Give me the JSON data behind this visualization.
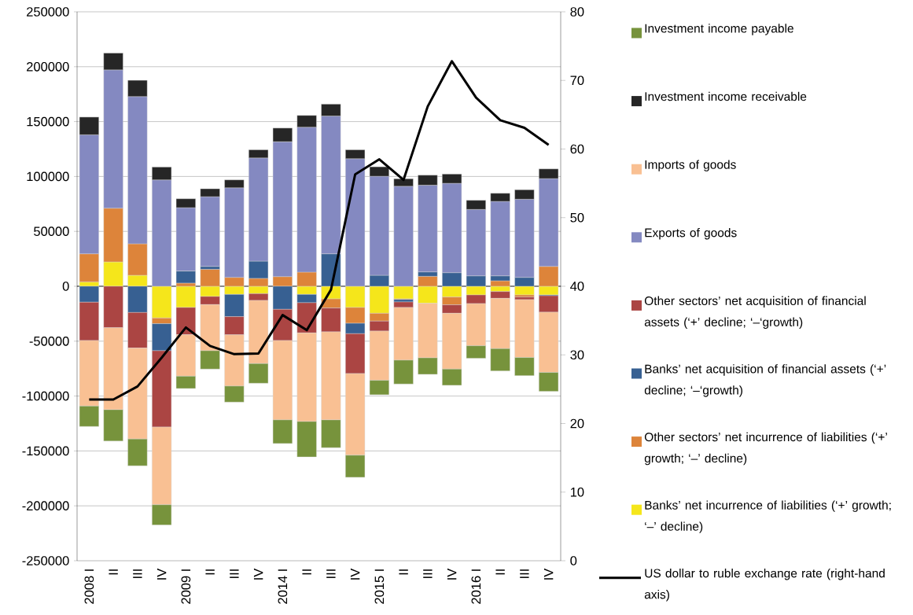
{
  "chart_data": {
    "type": "bar",
    "stacked": true,
    "grid": "y",
    "legend": "right",
    "categories": [
      "2008 I",
      "II",
      "III",
      "IV",
      "2009 I",
      "II",
      "III",
      "IV",
      "2014 I",
      "II",
      "III",
      "IV",
      "2015 I",
      "II",
      "III",
      "IV",
      "2016 I",
      "II",
      "III",
      "IV"
    ],
    "ylim": [
      -250000,
      250000
    ],
    "yticks": [
      -250000,
      -200000,
      -150000,
      -100000,
      -50000,
      0,
      50000,
      100000,
      150000,
      200000,
      250000
    ],
    "y2lim": [
      0,
      80
    ],
    "y2ticks": [
      0,
      10,
      20,
      30,
      40,
      50,
      60,
      70,
      80
    ],
    "series": [
      {
        "name": "Banks’ net incurrence of liabilities (‘+’ growth; ‘–’ decline)",
        "color": "#f5e61b",
        "values": [
          4000,
          22200,
          10000,
          -28900,
          -19300,
          -9300,
          -7400,
          -6700,
          null,
          -7400,
          -11500,
          -19300,
          -24600,
          -11500,
          -15500,
          -9800,
          -7900,
          -4800,
          -7900,
          -7900
        ]
      },
      {
        "name": "Other sectors’ net incurrence of liabilities (‘+’ growth; ‘–’ decline)",
        "color": "#dd843a",
        "values": [
          25600,
          48900,
          28700,
          -5200,
          2900,
          15500,
          8100,
          7200,
          8800,
          12900,
          -8300,
          -14400,
          -7100,
          -600,
          9100,
          -7100,
          null,
          5000,
          -1900,
          18100
        ]
      },
      {
        "name": "Banks’ net acquisition of financial assets (‘+’ decline; ‘–‘growth)",
        "color": "#376092",
        "values": [
          -14500,
          null,
          -23900,
          -24600,
          11000,
          2600,
          -20300,
          15700,
          -21000,
          -7600,
          29600,
          -9500,
          10000,
          -2200,
          4000,
          12400,
          9500,
          4500,
          8100,
          -700
        ]
      },
      {
        "name": "Other sectors’ net acquisition of financial assets (‘+’ decline; ‘–‘growth)",
        "color": "#ab4543",
        "values": [
          -34900,
          -37700,
          -32400,
          -69500,
          -24800,
          -7400,
          -16500,
          -6200,
          -28400,
          -27500,
          -21700,
          -36300,
          -9100,
          -5000,
          null,
          -7700,
          -7900,
          -6200,
          -2400,
          -15000
        ]
      },
      {
        "name": "Exports of goods",
        "color": "#8489c1",
        "values": [
          108400,
          126000,
          134100,
          96900,
          57700,
          63500,
          81600,
          94000,
          122900,
          132000,
          125500,
          116200,
          90200,
          91100,
          79000,
          81400,
          60500,
          67800,
          71200,
          80000
        ]
      },
      {
        "name": "Imports of goods",
        "color": "#f9c093",
        "values": [
          -59700,
          -74700,
          -82800,
          -70800,
          -37800,
          -42000,
          -46700,
          -57500,
          -72300,
          -80700,
          -80200,
          -74400,
          -44900,
          -48000,
          -49700,
          -50800,
          -38400,
          -45800,
          -52700,
          -54900
        ]
      },
      {
        "name": "Investment income receivable",
        "color": "#262626",
        "values": [
          16100,
          15300,
          14800,
          11700,
          8100,
          7200,
          7200,
          7400,
          12400,
          10700,
          10800,
          8100,
          8600,
          6800,
          9100,
          8400,
          8300,
          7400,
          8600,
          8800
        ]
      },
      {
        "name": "Investment income payable",
        "color": "#77933c",
        "values": [
          -18600,
          -28600,
          -24400,
          -18400,
          -11200,
          -16700,
          -14600,
          -17900,
          -21500,
          -32200,
          -25300,
          -20100,
          -13100,
          -21700,
          -15000,
          -14800,
          -11400,
          -20300,
          -16500,
          -17200
        ]
      },
      {
        "name": "US dollar to ruble exchange rate (right-hand axis)",
        "type": "line",
        "axis": "y2",
        "color": "#000000",
        "values": [
          23.5,
          23.5,
          25.4,
          29.6,
          34.0,
          31.3,
          30.1,
          30.2,
          35.8,
          33.6,
          39.5,
          56.3,
          58.5,
          55.5,
          66.2,
          72.8,
          67.5,
          64.2,
          63.1,
          60.6
        ]
      }
    ]
  }
}
